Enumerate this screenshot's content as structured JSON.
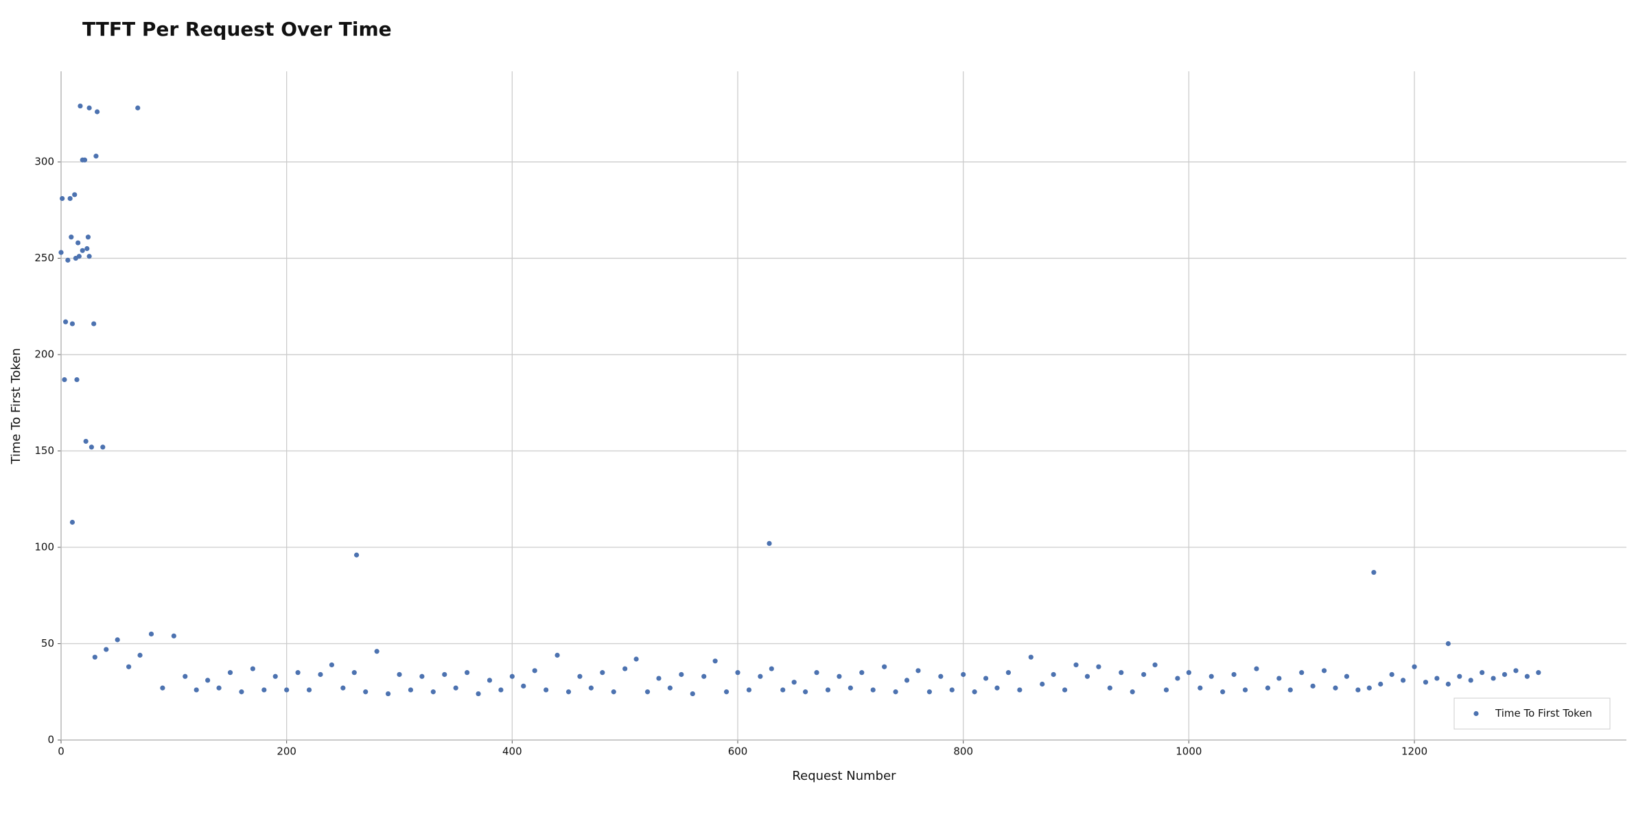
{
  "chart_data": {
    "type": "scatter",
    "title": "TTFT Per Request Over Time",
    "x_label": "Request Number",
    "y_label": "Time To First Token",
    "xlim": [
      0,
      1388
    ],
    "ylim": [
      0,
      347
    ],
    "xticks": [
      0,
      200,
      400,
      600,
      800,
      1000,
      1200
    ],
    "yticks": [
      0,
      50,
      100,
      150,
      200,
      250,
      300
    ],
    "grid": true,
    "legend": "lower right",
    "series": [
      {
        "name": "Time To First Token",
        "color": "#4c72b0",
        "x": [
          0,
          1,
          3,
          4,
          6,
          8,
          9,
          10,
          10,
          12,
          13,
          14,
          15,
          16,
          17,
          19,
          19,
          21,
          22,
          23,
          24,
          25,
          25,
          27,
          29,
          31,
          32,
          37,
          68,
          262,
          628,
          1164,
          1230,
          30,
          40,
          50,
          60,
          70,
          80,
          90,
          100,
          110,
          120,
          130,
          140,
          150,
          160,
          170,
          180,
          190,
          200,
          210,
          220,
          230,
          240,
          250,
          260,
          270,
          280,
          290,
          300,
          310,
          320,
          330,
          340,
          350,
          360,
          370,
          380,
          390,
          400,
          410,
          420,
          430,
          440,
          450,
          460,
          470,
          480,
          490,
          500,
          510,
          520,
          530,
          540,
          550,
          560,
          570,
          580,
          590,
          600,
          610,
          620,
          630,
          640,
          650,
          660,
          670,
          680,
          690,
          700,
          710,
          720,
          730,
          740,
          750,
          760,
          770,
          780,
          790,
          800,
          810,
          820,
          830,
          840,
          850,
          860,
          870,
          880,
          890,
          900,
          910,
          920,
          930,
          940,
          950,
          960,
          970,
          980,
          990,
          1000,
          1010,
          1020,
          1030,
          1040,
          1050,
          1060,
          1070,
          1080,
          1090,
          1100,
          1110,
          1120,
          1130,
          1140,
          1150,
          1160,
          1170,
          1180,
          1190,
          1200,
          1210,
          1220,
          1230,
          1240,
          1250,
          1260,
          1270,
          1280,
          1290,
          1300,
          1310
        ],
        "values": [
          253,
          281,
          187,
          217,
          249,
          281,
          261,
          216,
          113,
          283,
          250,
          187,
          258,
          251,
          329,
          254,
          301,
          301,
          155,
          255,
          261,
          251,
          328,
          152,
          216,
          303,
          326,
          152,
          328,
          96,
          102,
          87,
          50,
          43,
          47,
          52,
          38,
          44,
          55,
          27,
          54,
          33,
          26,
          31,
          27,
          35,
          25,
          37,
          26,
          33,
          26,
          35,
          26,
          34,
          39,
          27,
          35,
          25,
          46,
          24,
          34,
          26,
          33,
          25,
          34,
          27,
          35,
          24,
          31,
          26,
          33,
          28,
          36,
          26,
          44,
          25,
          33,
          27,
          35,
          25,
          37,
          42,
          25,
          32,
          27,
          34,
          24,
          33,
          41,
          25,
          35,
          26,
          33,
          37,
          26,
          30,
          25,
          35,
          26,
          33,
          27,
          35,
          26,
          38,
          25,
          31,
          36,
          25,
          33,
          26,
          34,
          25,
          32,
          27,
          35,
          26,
          43,
          29,
          34,
          26,
          39,
          33,
          38,
          27,
          35,
          25,
          34,
          39,
          26,
          32,
          35,
          27,
          33,
          25,
          34,
          26,
          37,
          27,
          32,
          26,
          35,
          28,
          36,
          27,
          33,
          26,
          27,
          29,
          34,
          31,
          38,
          30,
          32,
          29,
          33,
          31,
          35,
          32,
          34,
          36,
          33,
          35
        ]
      }
    ]
  }
}
